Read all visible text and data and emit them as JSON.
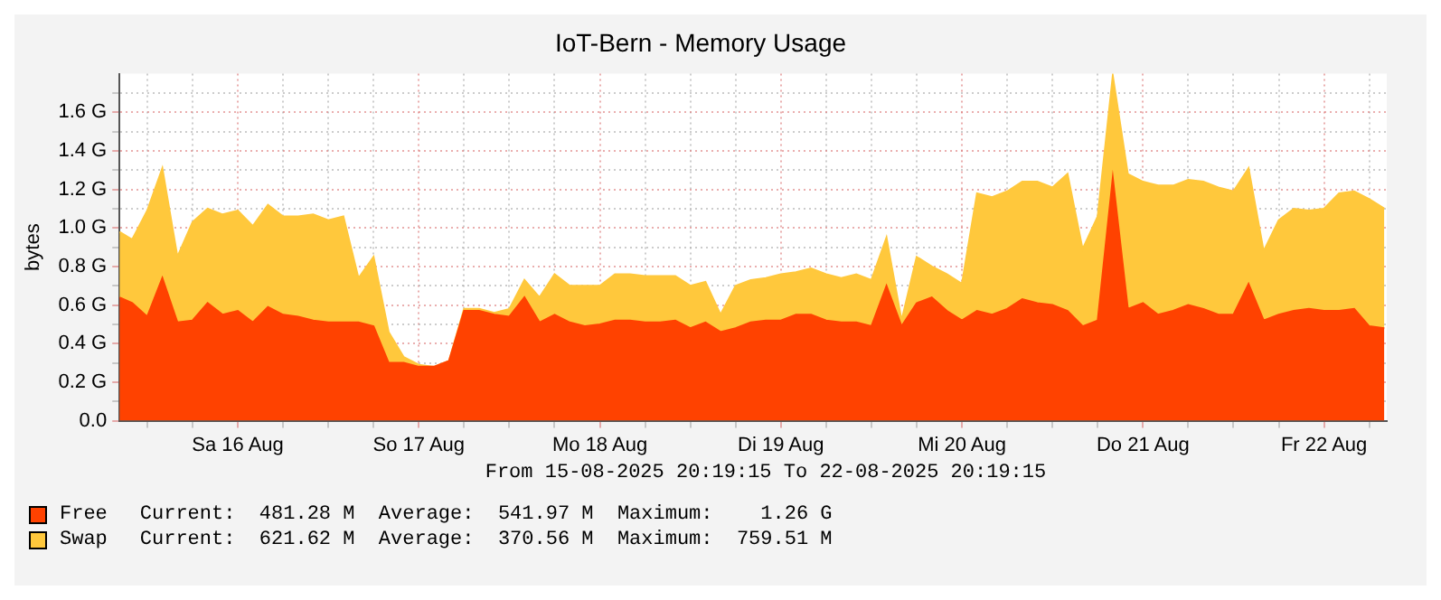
{
  "chart_data": {
    "type": "area",
    "title": "IoT-Bern - Memory Usage",
    "ylabel": "bytes",
    "stacked": true,
    "grid": true,
    "legend": "bottom",
    "x": [
      "2025-08-15T20:19:15",
      "2025-08-15T22:00",
      "2025-08-16T00:00",
      "2025-08-16T02:00",
      "2025-08-16T04:00",
      "2025-08-16T06:00",
      "2025-08-16T08:00",
      "2025-08-16T10:00",
      "2025-08-16T12:00",
      "2025-08-16T14:00",
      "2025-08-16T16:00",
      "2025-08-16T18:00",
      "2025-08-16T20:00",
      "2025-08-16T22:00",
      "2025-08-17T00:00",
      "2025-08-17T02:00",
      "2025-08-17T04:00",
      "2025-08-17T06:00",
      "2025-08-17T08:00",
      "2025-08-17T10:00",
      "2025-08-17T12:00",
      "2025-08-17T14:00",
      "2025-08-17T16:00",
      "2025-08-17T18:00",
      "2025-08-17T20:00",
      "2025-08-17T22:00",
      "2025-08-18T00:00",
      "2025-08-18T02:00",
      "2025-08-18T04:00",
      "2025-08-18T06:00",
      "2025-08-18T08:00",
      "2025-08-18T10:00",
      "2025-08-18T12:00",
      "2025-08-18T14:00",
      "2025-08-18T16:00",
      "2025-08-18T18:00",
      "2025-08-18T20:00",
      "2025-08-18T22:00",
      "2025-08-19T00:00",
      "2025-08-19T02:00",
      "2025-08-19T04:00",
      "2025-08-19T06:00",
      "2025-08-19T08:00",
      "2025-08-19T10:00",
      "2025-08-19T12:00",
      "2025-08-19T14:00",
      "2025-08-19T16:00",
      "2025-08-19T18:00",
      "2025-08-19T20:00",
      "2025-08-19T22:00",
      "2025-08-20T00:00",
      "2025-08-20T02:00",
      "2025-08-20T04:00",
      "2025-08-20T06:00",
      "2025-08-20T08:00",
      "2025-08-20T10:00",
      "2025-08-20T12:00",
      "2025-08-20T14:00",
      "2025-08-20T16:00",
      "2025-08-20T18:00",
      "2025-08-20T20:00",
      "2025-08-20T22:00",
      "2025-08-21T00:00",
      "2025-08-21T02:00",
      "2025-08-21T04:00",
      "2025-08-21T06:00",
      "2025-08-21T08:00",
      "2025-08-21T10:00",
      "2025-08-21T12:00",
      "2025-08-21T14:00",
      "2025-08-21T16:00",
      "2025-08-21T18:00",
      "2025-08-21T20:00",
      "2025-08-21T22:00",
      "2025-08-22T00:00",
      "2025-08-22T02:00",
      "2025-08-22T04:00",
      "2025-08-22T06:00",
      "2025-08-22T08:00",
      "2025-08-22T10:00",
      "2025-08-22T12:00",
      "2025-08-22T14:00",
      "2025-08-22T16:00",
      "2025-08-22T18:00",
      "2025-08-22T20:00"
    ],
    "series": [
      {
        "name": "Free",
        "color": "#ff4200",
        "values": [
          0.64,
          0.61,
          0.54,
          0.74,
          0.51,
          0.52,
          0.61,
          0.55,
          0.57,
          0.51,
          0.59,
          0.55,
          0.54,
          0.52,
          0.51,
          0.51,
          0.51,
          0.49,
          0.3,
          0.3,
          0.28,
          0.28,
          0.31,
          0.57,
          0.57,
          0.55,
          0.54,
          0.64,
          0.51,
          0.55,
          0.51,
          0.49,
          0.5,
          0.52,
          0.52,
          0.51,
          0.51,
          0.52,
          0.48,
          0.51,
          0.46,
          0.48,
          0.51,
          0.52,
          0.52,
          0.55,
          0.55,
          0.52,
          0.51,
          0.51,
          0.49,
          0.7,
          0.49,
          0.61,
          0.64,
          0.57,
          0.52,
          0.57,
          0.55,
          0.58,
          0.63,
          0.61,
          0.6,
          0.57,
          0.49,
          0.52,
          1.26,
          0.58,
          0.61,
          0.55,
          0.57,
          0.6,
          0.58,
          0.55,
          0.55,
          0.71,
          0.52,
          0.55,
          0.57,
          0.58,
          0.57,
          0.57,
          0.58,
          0.49,
          0.48
        ]
      },
      {
        "name": "Swap",
        "color": "#ffc83c",
        "values": [
          0.34,
          0.33,
          0.55,
          0.57,
          0.34,
          0.51,
          0.49,
          0.52,
          0.52,
          0.5,
          0.53,
          0.51,
          0.52,
          0.55,
          0.53,
          0.55,
          0.23,
          0.36,
          0.16,
          0.03,
          0.01,
          0,
          0,
          0.01,
          0.01,
          0.01,
          0.04,
          0.09,
          0.13,
          0.21,
          0.19,
          0.21,
          0.2,
          0.24,
          0.24,
          0.24,
          0.24,
          0.23,
          0.22,
          0.21,
          0.09,
          0.22,
          0.22,
          0.22,
          0.24,
          0.22,
          0.24,
          0.24,
          0.23,
          0.25,
          0.24,
          0.25,
          0.03,
          0.24,
          0.16,
          0.19,
          0.19,
          0.61,
          0.61,
          0.61,
          0.61,
          0.63,
          0.61,
          0.71,
          0.4,
          0.54,
          0.53,
          0.7,
          0.63,
          0.67,
          0.65,
          0.65,
          0.66,
          0.66,
          0.64,
          0.6,
          0.36,
          0.49,
          0.53,
          0.51,
          0.53,
          0.61,
          0.61,
          0.66,
          0.62
        ]
      }
    ],
    "xlim": [
      "2025-08-15T20:19:15",
      "2025-08-22T20:19:15"
    ],
    "xticks": [
      {
        "value": "2025-08-16T00:00",
        "label": null
      },
      {
        "value": "2025-08-16T06:00",
        "label": null
      },
      {
        "value": "2025-08-16T12:00",
        "label": "Sa 16 Aug"
      },
      {
        "value": "2025-08-16T18:00",
        "label": null
      },
      {
        "value": "2025-08-17T00:00",
        "label": null
      },
      {
        "value": "2025-08-17T06:00",
        "label": null
      },
      {
        "value": "2025-08-17T12:00",
        "label": "So 17 Aug"
      },
      {
        "value": "2025-08-17T18:00",
        "label": null
      },
      {
        "value": "2025-08-18T00:00",
        "label": null
      },
      {
        "value": "2025-08-18T06:00",
        "label": null
      },
      {
        "value": "2025-08-18T12:00",
        "label": "Mo 18 Aug"
      },
      {
        "value": "2025-08-18T18:00",
        "label": null
      },
      {
        "value": "2025-08-19T00:00",
        "label": null
      },
      {
        "value": "2025-08-19T06:00",
        "label": null
      },
      {
        "value": "2025-08-19T12:00",
        "label": "Di 19 Aug"
      },
      {
        "value": "2025-08-19T18:00",
        "label": null
      },
      {
        "value": "2025-08-20T00:00",
        "label": null
      },
      {
        "value": "2025-08-20T06:00",
        "label": null
      },
      {
        "value": "2025-08-20T12:00",
        "label": "Mi 20 Aug"
      },
      {
        "value": "2025-08-20T18:00",
        "label": null
      },
      {
        "value": "2025-08-21T00:00",
        "label": null
      },
      {
        "value": "2025-08-21T06:00",
        "label": null
      },
      {
        "value": "2025-08-21T12:00",
        "label": "Do 21 Aug"
      },
      {
        "value": "2025-08-21T18:00",
        "label": null
      },
      {
        "value": "2025-08-22T00:00",
        "label": null
      },
      {
        "value": "2025-08-22T06:00",
        "label": null
      },
      {
        "value": "2025-08-22T12:00",
        "label": "Fr 22 Aug"
      },
      {
        "value": "2025-08-22T18:00",
        "label": null
      }
    ],
    "ylim": [
      0,
      1.8
    ],
    "yticks": [
      {
        "value": 0,
        "label": "0.0"
      },
      {
        "value": 0.1,
        "label": null
      },
      {
        "value": 0.2,
        "label": "0.2 G"
      },
      {
        "value": 0.3,
        "label": null
      },
      {
        "value": 0.4,
        "label": "0.4 G"
      },
      {
        "value": 0.5,
        "label": null
      },
      {
        "value": 0.6,
        "label": "0.6 G"
      },
      {
        "value": 0.7,
        "label": null
      },
      {
        "value": 0.8,
        "label": "0.8 G"
      },
      {
        "value": 0.9,
        "label": null
      },
      {
        "value": 1.0,
        "label": "1.0 G"
      },
      {
        "value": 1.1,
        "label": null
      },
      {
        "value": 1.2,
        "label": "1.2 G"
      },
      {
        "value": 1.3,
        "label": null
      },
      {
        "value": 1.4,
        "label": "1.4 G"
      },
      {
        "value": 1.5,
        "label": null
      },
      {
        "value": 1.6,
        "label": "1.6 G"
      },
      {
        "value": 1.7,
        "label": null
      }
    ],
    "annotations": [
      "From 15-08-2025 20:19:15 To 22-08-2025 20:19:15",
      "Current:  481.28 M  Average:  541.97 M  Maximum:    1.26 G",
      "Current:  621.62 M  Average:  370.56 M  Maximum:  759.51 M"
    ]
  }
}
